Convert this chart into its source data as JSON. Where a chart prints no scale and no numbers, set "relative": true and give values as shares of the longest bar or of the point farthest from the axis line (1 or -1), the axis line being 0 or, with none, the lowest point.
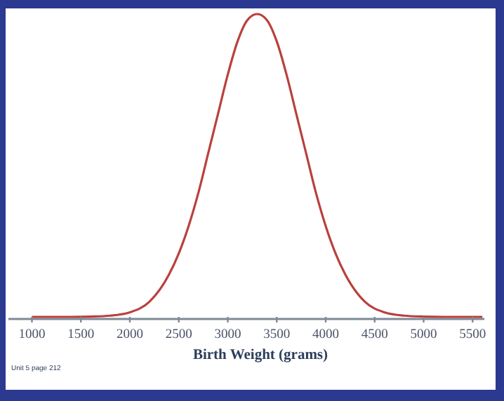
{
  "chart_data": {
    "type": "line",
    "relative": true,
    "xlabel": "Birth Weight (grams)",
    "x": [
      1000,
      1200,
      1400,
      1600,
      1800,
      2000,
      2200,
      2400,
      2500,
      2600,
      2700,
      2800,
      2900,
      3000,
      3100,
      3200,
      3300,
      3400,
      3500,
      3600,
      3700,
      3800,
      3900,
      4000,
      4100,
      4200,
      4400,
      4600,
      4800,
      5000,
      5200,
      5400,
      5600
    ],
    "series": [
      {
        "color": "#b9403e",
        "values": [
          0,
          0,
          0,
          0.001,
          0.004,
          0.015,
          0.05,
          0.14,
          0.21,
          0.3,
          0.41,
          0.54,
          0.67,
          0.8,
          0.91,
          0.98,
          1,
          0.98,
          0.91,
          0.8,
          0.67,
          0.54,
          0.41,
          0.3,
          0.21,
          0.14,
          0.05,
          0.015,
          0.004,
          0.001,
          0,
          0,
          0
        ]
      }
    ],
    "xlim": [
      760,
      5620
    ],
    "xticks": [
      1000,
      1500,
      2000,
      2500,
      3000,
      3500,
      4000,
      4500,
      5000,
      5500
    ],
    "grid": false,
    "marker": "none",
    "line_style": "solid",
    "annotations": [
      "Unit 5 page 212"
    ]
  }
}
